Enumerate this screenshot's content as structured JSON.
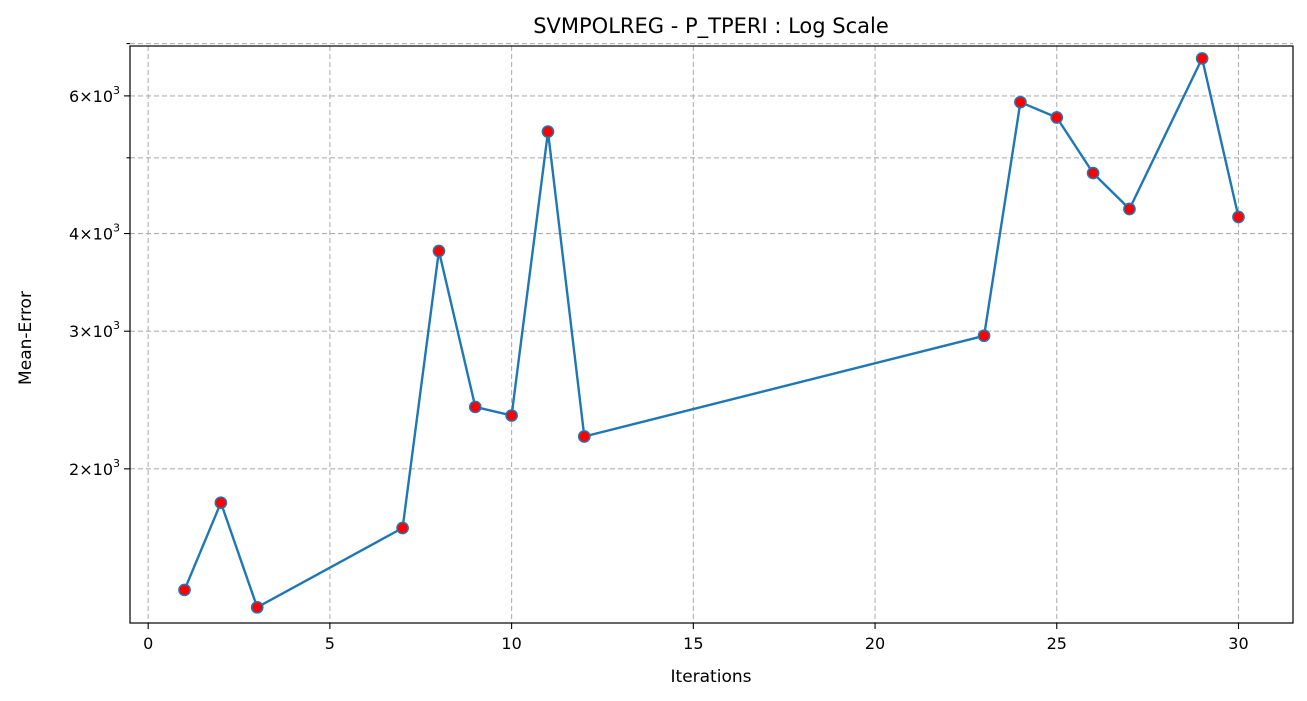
{
  "chart_data": {
    "type": "line",
    "title": "SVMPOLREG - P_TPERI : Log Scale",
    "xlabel": "Iterations",
    "ylabel": "Mean-Error",
    "yscale": "log",
    "xlim": [
      -0.5,
      31.5
    ],
    "ylim": [
      1270,
      6950
    ],
    "grid": true,
    "x_ticks": [
      0,
      5,
      10,
      15,
      20,
      25,
      30
    ],
    "x_tick_labels": [
      "0",
      "5",
      "10",
      "15",
      "20",
      "25",
      "30"
    ],
    "y_major_ticks": [
      {
        "value": 2000,
        "base": "2",
        "exp": "3"
      },
      {
        "value": 3000,
        "base": "3",
        "exp": "3"
      },
      {
        "value": 4000,
        "base": "4",
        "exp": "3"
      },
      {
        "value": 6000,
        "base": "6",
        "exp": "3"
      }
    ],
    "y_minor_ticks": [
      5000,
      7000
    ],
    "series": [
      {
        "x": [
          1,
          2,
          3,
          7,
          8,
          9,
          10,
          11,
          12,
          23,
          24,
          25,
          26,
          27,
          29,
          30
        ],
        "values": [
          1400,
          1810,
          1330,
          1680,
          3800,
          2400,
          2340,
          5400,
          2200,
          2960,
          5890,
          5630,
          4780,
          4300,
          6700,
          4200
        ],
        "line_color": "#1f77b4",
        "marker_face_color": "#ff0000",
        "marker_edge_color": "#1f77b4"
      }
    ]
  }
}
